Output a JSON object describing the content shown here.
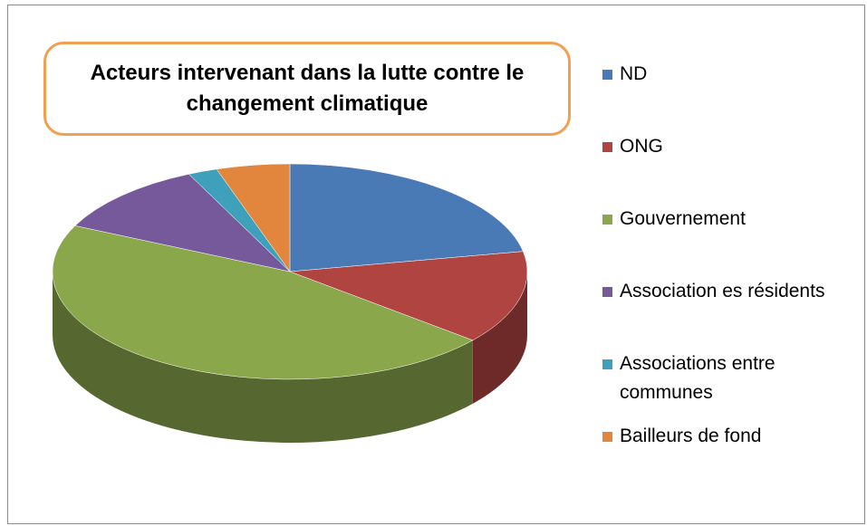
{
  "chart_data": {
    "type": "pie",
    "three_d": true,
    "title": "Acteurs intervenant dans la lutte contre le changement climatique",
    "categories": [
      "ND",
      "ONG",
      "Gouvernement",
      "Association es résidents",
      "Associations entre communes",
      "Bailleurs de fond"
    ],
    "values": [
      22,
      14,
      46,
      11,
      2,
      5
    ],
    "colors": [
      "#4a7ab5",
      "#b04440",
      "#8aa84b",
      "#76599a",
      "#3fa0bb",
      "#e2863d"
    ],
    "legend": "right"
  }
}
